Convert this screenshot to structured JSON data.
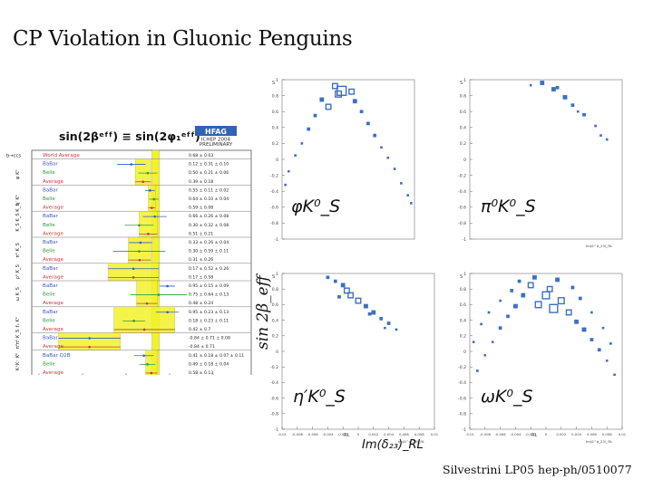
{
  "slide": {
    "title": "CP Violation in Gluonic Penguins",
    "footer": "Silvestrini LP05  hep-ph/0510077"
  },
  "hfag": {
    "header": "sin(2βᵉᶠᶠ) ≡ sin(2φ₁ᵉᶠᶠ)",
    "logo": "HFAG",
    "conference": "ICHEP 2004",
    "status": "PRELIMINARY",
    "section_label": "b→ccs",
    "xaxis_ticks": [
      "-2",
      "-1",
      "0",
      "1",
      "2"
    ],
    "group_labels": [
      "φ K⁰",
      "η′ K⁰",
      "K_S K_S K_S",
      "π⁰ K_S",
      "ρ⁰ K_S",
      "ω K_S",
      "f₀ K⁰",
      "π⁰π⁰ K_S",
      "K⁺K⁻ K⁰"
    ],
    "rows": [
      {
        "label": "World Average",
        "value": "0.68 ± 0.03"
      },
      {
        "label": "BaBar",
        "value": "0.12 ± 0.31 ± 0.10"
      },
      {
        "label": "Belle",
        "value": "0.50 ± 0.21 ± 0.06"
      },
      {
        "label": "Average",
        "value": "0.39 ± 0.18"
      },
      {
        "label": "BaBar",
        "value": "0.55 ± 0.11 ± 0.02"
      },
      {
        "label": "Belle",
        "value": "0.64 ± 0.10 ± 0.04"
      },
      {
        "label": "Average",
        "value": "0.59 ± 0.08"
      },
      {
        "label": "BaBar",
        "value": "0.66 ± 0.26 ± 0.08"
      },
      {
        "label": "Belle",
        "value": "0.30 ± 0.32 ± 0.08"
      },
      {
        "label": "Average",
        "value": "0.51 ± 0.21"
      },
      {
        "label": "BaBar",
        "value": "0.33 ± 0.26 ± 0.04"
      },
      {
        "label": "Belle",
        "value": "0.30 ± 0.59 ± 0.11"
      },
      {
        "label": "Average",
        "value": "0.31 ± 0.26"
      },
      {
        "label": "BaBar",
        "value": "0.17 ± 0.52 ± 0.26"
      },
      {
        "label": "Average",
        "value": "0.17 ± 0.58"
      },
      {
        "label": "BaBar",
        "value": "0.95 ± 0.15 ± 0.09"
      },
      {
        "label": "Belle",
        "value": "0.75 ± 0.64 ± 0.13"
      },
      {
        "label": "Average",
        "value": "0.48 ± 0.24"
      },
      {
        "label": "BaBar",
        "value": "0.95 ± 0.23 ± 0.13"
      },
      {
        "label": "Belle",
        "value": "0.18 ± 0.23 ± 0.11"
      },
      {
        "label": "Average",
        "value": "0.42 ± 0.7"
      },
      {
        "label": "BaBar",
        "value": "-0.84 ± 0.71 ± 0.08"
      },
      {
        "label": "Average",
        "value": "-0.84 ± 0.71"
      },
      {
        "label": "BaBar Q2B",
        "value": "0.41 ± 0.18 ± 0.07 ± 0.11"
      },
      {
        "label": "Belle",
        "value": "0.49 ± 0.18 ± 0.04"
      },
      {
        "label": "Average",
        "value": "0.58 ± 0.13"
      }
    ]
  },
  "panels": {
    "ylabel": "sin 2β_eff",
    "xlabel": "Im(δ₂₃)_RL",
    "axis_corner_y": "S",
    "axis_corner_x_top": "Im(δ^d_23)_RL",
    "axis_corner_x_bottom": "Im(δ^d_23)_RL",
    "rl_label": "RL",
    "y_ticks": [
      "1",
      "0.8",
      "0.6",
      "0.4",
      "0.2",
      "0",
      "-0.2",
      "-0.4",
      "-0.6",
      "-0.8",
      "-1"
    ],
    "x_ticks": [
      "-0.01",
      "-0.008",
      "-0.006",
      "-0.004",
      "-0.002",
      "0",
      "0.002",
      "0.004",
      "0.006",
      "0.008",
      "0.01"
    ],
    "items": [
      {
        "label": "φK⁰_S"
      },
      {
        "label": "π⁰K⁰_S"
      },
      {
        "label": "η′K⁰_S"
      },
      {
        "label": "ωK⁰_S"
      }
    ]
  },
  "colors": {
    "box": "#3b6fc4",
    "band": "#f2f22a",
    "band_edge": "#9a9a30",
    "frame": "#888888"
  }
}
